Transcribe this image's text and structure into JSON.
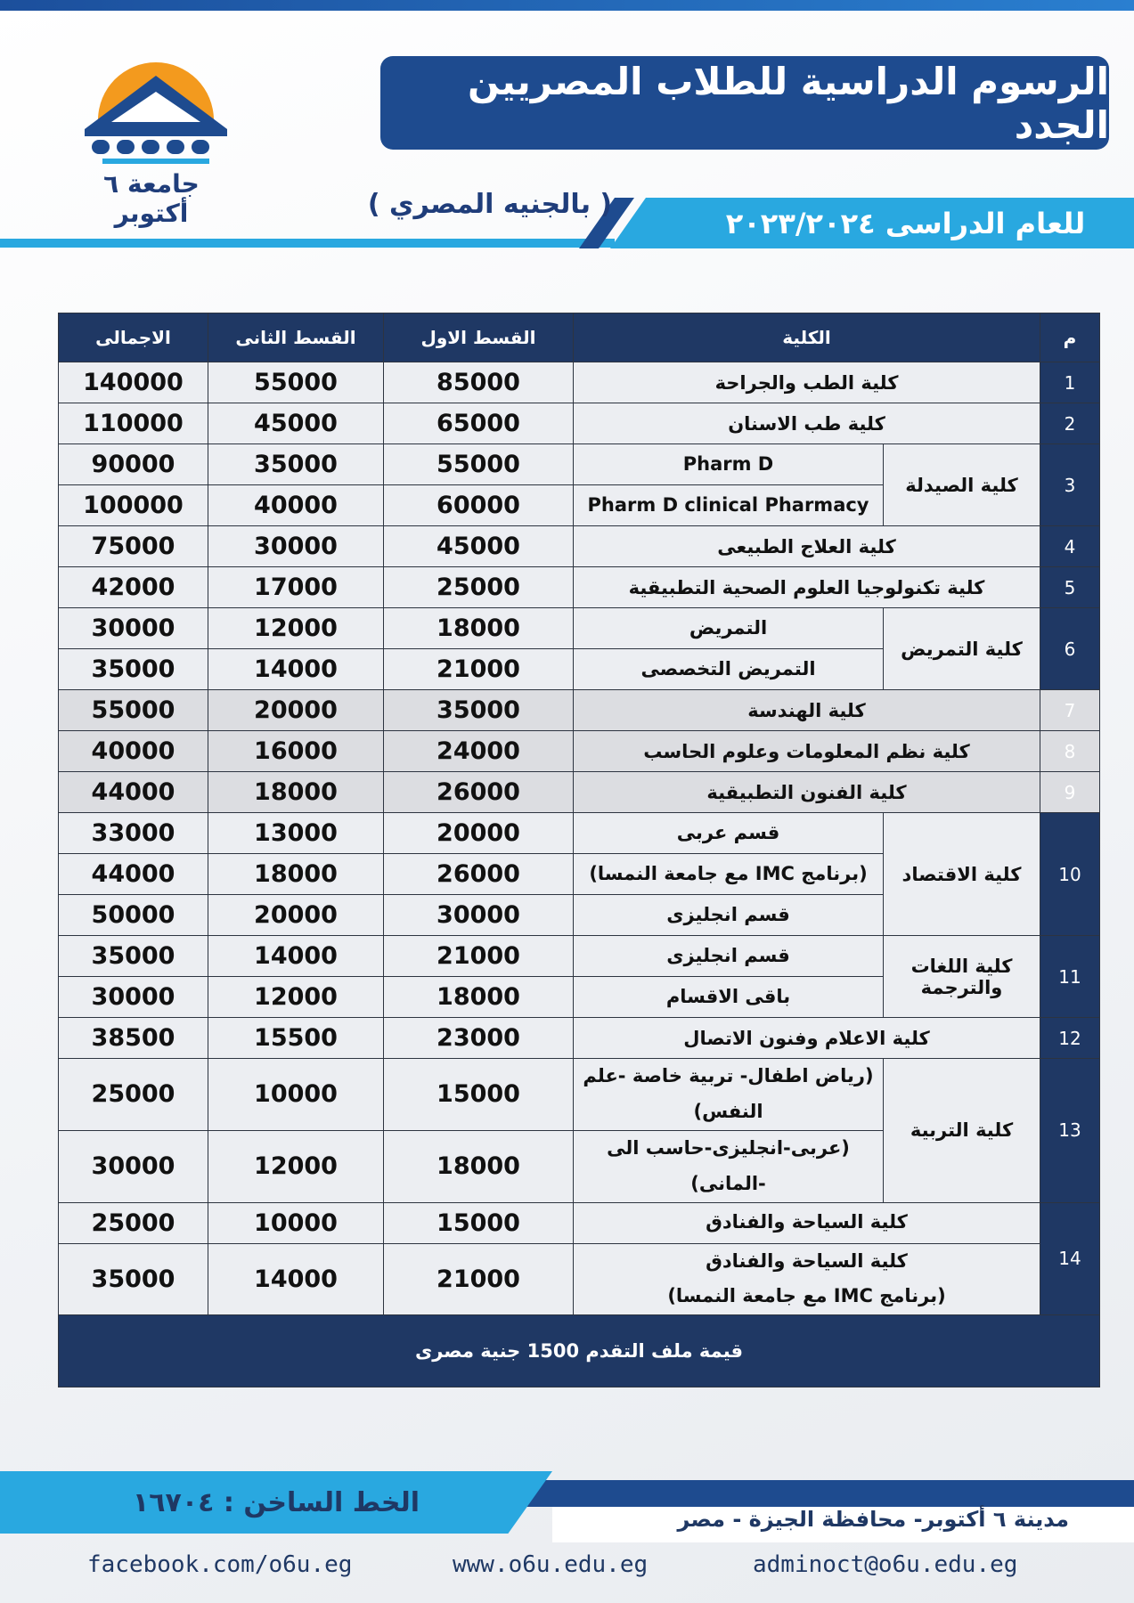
{
  "header": {
    "university": "جامعة ٦ أكتوبر",
    "title": "الرسوم الدراسية للطلاب المصريين الجدد",
    "currency": "( بالجنيه المصري )",
    "academic_year": "للعام الدراسى ٢٠٢٣/٢٠٢٤"
  },
  "table": {
    "headers": [
      "م",
      "الكلية",
      "القسط الاول",
      "القسط الثانى",
      "الاجمالى"
    ],
    "groups": [
      {
        "no": 1,
        "faculty": "كلية الطب والجراحة",
        "rows": [
          {
            "first": 85000,
            "second": 55000,
            "total": 140000
          }
        ]
      },
      {
        "no": 2,
        "faculty": "كلية طب الاسنان",
        "rows": [
          {
            "first": 65000,
            "second": 45000,
            "total": 110000
          }
        ]
      },
      {
        "no": 3,
        "faculty": "كلية الصيدلة",
        "rows": [
          {
            "program": "Pharm D",
            "first": 55000,
            "second": 35000,
            "total": 90000
          },
          {
            "program": "Pharm D clinical Pharmacy",
            "first": 60000,
            "second": 40000,
            "total": 100000
          }
        ]
      },
      {
        "no": 4,
        "faculty": "كلية العلاج الطبيعى",
        "rows": [
          {
            "first": 45000,
            "second": 30000,
            "total": 75000
          }
        ]
      },
      {
        "no": 5,
        "faculty": "كلية تكنولوجيا العلوم الصحية التطبيقية",
        "rows": [
          {
            "first": 25000,
            "second": 17000,
            "total": 42000
          }
        ]
      },
      {
        "no": 6,
        "faculty": "كلية التمريض",
        "rows": [
          {
            "program": "التمريض",
            "first": 18000,
            "second": 12000,
            "total": 30000
          },
          {
            "program": "التمريض التخصصى",
            "first": 21000,
            "second": 14000,
            "total": 35000
          }
        ]
      },
      {
        "no": 7,
        "faculty": "كلية الهندسة",
        "highlight": true,
        "rows": [
          {
            "first": 35000,
            "second": 20000,
            "total": 55000
          }
        ]
      },
      {
        "no": 8,
        "faculty": "كلية نظم المعلومات وعلوم الحاسب",
        "highlight": true,
        "rows": [
          {
            "first": 24000,
            "second": 16000,
            "total": 40000
          }
        ]
      },
      {
        "no": 9,
        "faculty": "كلية الفنون التطبيقية",
        "highlight": true,
        "rows": [
          {
            "first": 26000,
            "second": 18000,
            "total": 44000
          }
        ]
      },
      {
        "no": 10,
        "faculty": "كلية الاقتصاد",
        "rows": [
          {
            "program": "قسم عربى",
            "first": 20000,
            "second": 13000,
            "total": 33000
          },
          {
            "program": "(برنامج IMC مع جامعة النمسا)",
            "first": 26000,
            "second": 18000,
            "total": 44000
          },
          {
            "program": "قسم انجليزى",
            "first": 30000,
            "second": 20000,
            "total": 50000
          }
        ]
      },
      {
        "no": 11,
        "faculty": "كلية اللغات والترجمة",
        "rows": [
          {
            "program": "قسم انجليزى",
            "first": 21000,
            "second": 14000,
            "total": 35000
          },
          {
            "program": "باقى الاقسام",
            "first": 18000,
            "second": 12000,
            "total": 30000
          }
        ]
      },
      {
        "no": 12,
        "faculty": "كلية الاعلام وفنون الاتصال",
        "rows": [
          {
            "first": 23000,
            "second": 15500,
            "total": 38500
          }
        ]
      },
      {
        "no": 13,
        "faculty": "كلية التربية",
        "rows": [
          {
            "program": "(رياض اطفال- تربية خاصة -علم النفس)",
            "first": 15000,
            "second": 10000,
            "total": 25000
          },
          {
            "program": "(عربى-انجليزى-حاسب الى -المانى)",
            "first": 18000,
            "second": 12000,
            "total": 30000
          }
        ]
      },
      {
        "no": 14,
        "rows": [
          {
            "program": "كلية السياحة والفنادق",
            "first": 15000,
            "second": 10000,
            "total": 25000
          },
          {
            "program": "كلية السياحة والفنادق\n(برنامج IMC مع جامعة النمسا)",
            "first": 21000,
            "second": 14000,
            "total": 35000
          }
        ]
      }
    ],
    "footer_note": "قيمة ملف التقدم 1500 جنية مصرى"
  },
  "footer": {
    "hotline": "الخط الساخن : ١٦٧٠٤",
    "address": "مدينة ٦ أكتوبر- محافظة الجيزة - مصر",
    "facebook": "facebook.com/o6u.eg",
    "website": "www.o6u.edu.eg",
    "email": "adminoct@o6u.edu.eg"
  }
}
